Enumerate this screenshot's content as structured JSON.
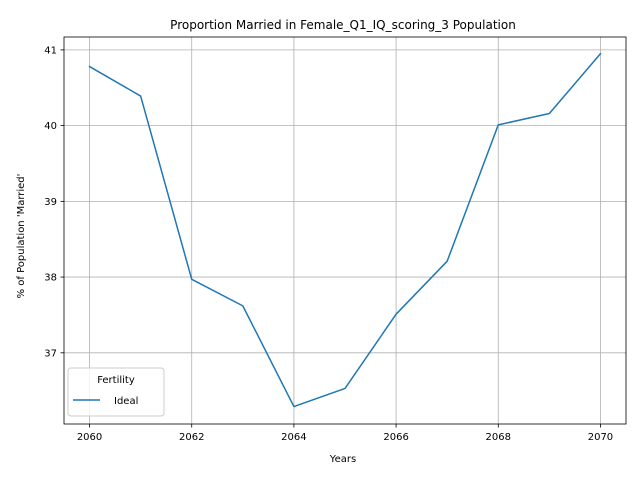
{
  "chart_data": {
    "type": "line",
    "title": "Proportion Married in Female_Q1_IQ_scoring_3 Population",
    "xlabel": "Years",
    "ylabel": "% of Population 'Married'",
    "x": [
      2060,
      2061,
      2062,
      2063,
      2064,
      2065,
      2066,
      2067,
      2068,
      2069,
      2070
    ],
    "x_ticks": [
      2060,
      2062,
      2064,
      2066,
      2068,
      2070
    ],
    "y_ticks": [
      37,
      38,
      39,
      40,
      41
    ],
    "xlim": [
      2059.5,
      2070.5
    ],
    "ylim": [
      36.06,
      41.17
    ],
    "grid": true,
    "legend": {
      "title": "Fertility",
      "placement": "lower-left"
    },
    "series": [
      {
        "name": "Ideal",
        "color": "#1f77b4",
        "values": [
          40.78,
          40.39,
          37.97,
          37.62,
          36.29,
          36.53,
          37.51,
          38.21,
          40.01,
          40.16,
          40.95
        ]
      }
    ]
  }
}
